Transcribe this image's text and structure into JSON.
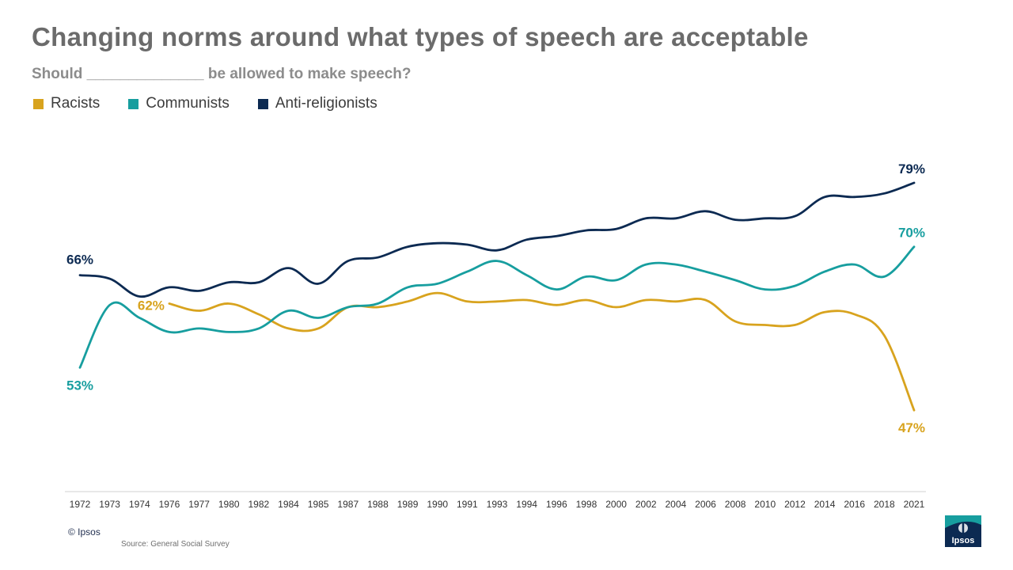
{
  "header": {
    "title": "Changing norms around what types of speech are acceptable",
    "subtitle": "Should ______________ be allowed to make speech?"
  },
  "footer": {
    "copyright": "© Ipsos",
    "source": "Source: General Social Survey",
    "logo_text": "Ipsos"
  },
  "colors": {
    "racists": "#d8a31e",
    "communists": "#179e9f",
    "anti_religionists": "#0c2a52",
    "axis": "#d0d0d0",
    "tick": "#333333"
  },
  "chart_data": {
    "type": "line",
    "title": "Changing norms around what types of speech are acceptable",
    "xlabel": "",
    "ylabel": "",
    "ylim": [
      37,
      85
    ],
    "grid": false,
    "legend_position": "top-left",
    "categories": [
      "1972",
      "1973",
      "1974",
      "1976",
      "1977",
      "1980",
      "1982",
      "1984",
      "1985",
      "1987",
      "1988",
      "1989",
      "1990",
      "1991",
      "1993",
      "1994",
      "1996",
      "1998",
      "2000",
      "2002",
      "2004",
      "2006",
      "2008",
      "2010",
      "2012",
      "2014",
      "2016",
      "2018",
      "2021"
    ],
    "series": [
      {
        "key": "racists",
        "name": "Racists",
        "values": [
          null,
          null,
          null,
          62,
          61,
          62,
          60.5,
          58.5,
          58.5,
          61.5,
          61.5,
          62.3,
          63.5,
          62.3,
          62.3,
          62.5,
          61.8,
          62.5,
          61.5,
          62.5,
          62.3,
          62.5,
          59.5,
          59,
          59,
          60.8,
          60.5,
          57.5,
          47
        ],
        "start_label": "62%",
        "end_label": "47%"
      },
      {
        "key": "communists",
        "name": "Communists",
        "values": [
          53,
          61.8,
          60,
          58,
          58.5,
          58,
          58.5,
          61,
          60,
          61.5,
          62,
          64.3,
          64.8,
          66.5,
          68,
          66,
          64,
          65.8,
          65.3,
          67.5,
          67.5,
          66.5,
          65.3,
          64,
          64.5,
          66.5,
          67.5,
          65.8,
          70
        ],
        "start_label": "53%",
        "end_label": "70%"
      },
      {
        "key": "anti_religionists",
        "name": "Anti-religionists",
        "values": [
          66,
          65.5,
          63,
          64.3,
          63.8,
          65,
          65,
          67,
          64.8,
          68,
          68.5,
          70,
          70.5,
          70.3,
          69.5,
          71,
          71.5,
          72.3,
          72.5,
          74,
          74,
          75,
          73.8,
          74,
          74.3,
          77,
          77,
          77.5,
          79
        ],
        "start_label": "66%",
        "end_label": "79%"
      }
    ]
  }
}
